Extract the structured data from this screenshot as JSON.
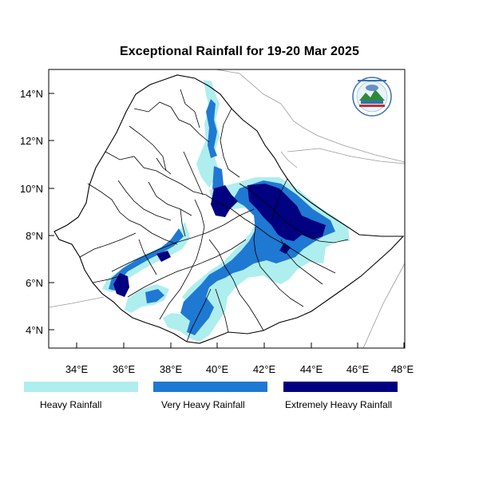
{
  "title": "Exceptional Rainfall for 19-20 Mar 2025",
  "axes": {
    "x_ticks": [
      "34°E",
      "36°E",
      "38°E",
      "40°E",
      "42°E",
      "44°E",
      "46°E",
      "48°E"
    ],
    "y_ticks": [
      "14°N",
      "12°N",
      "10°N",
      "8°N",
      "6°N",
      "4°N"
    ]
  },
  "legend": [
    {
      "label": "Heavy Rainfall",
      "color": "#aeeeee"
    },
    {
      "label": "Very Heavy Rainfall",
      "color": "#1f78d2"
    },
    {
      "label": "Extremely Heavy Rainfall",
      "color": "#000080"
    }
  ],
  "colors": {
    "heavy": "#aeeeee",
    "very_heavy": "#1f78d2",
    "extreme": "#000080",
    "border": "#000000",
    "neighbor_border": "#9a9a9a"
  },
  "logo": {
    "icon": "meteorology-institute-logo"
  }
}
